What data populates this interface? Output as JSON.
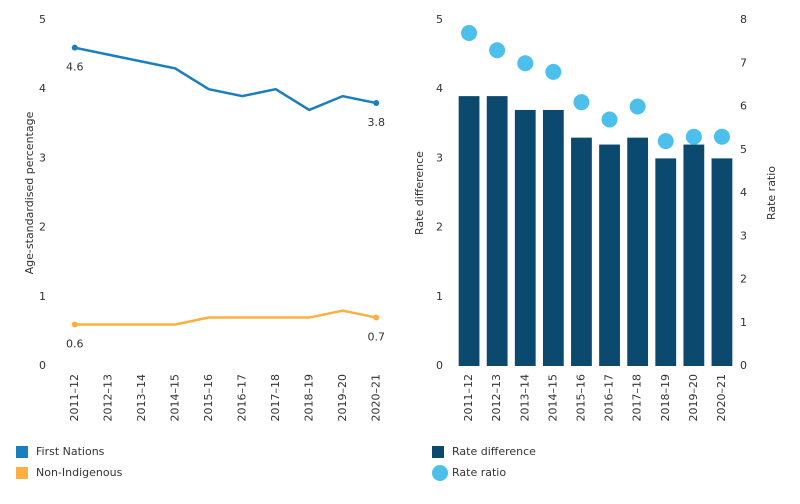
{
  "chart_data": [
    {
      "type": "line",
      "ylabel": "Age-standardised percentage",
      "categories": [
        "2011–12",
        "2012–13",
        "2013–14",
        "2014–15",
        "2015–16",
        "2016–17",
        "2017–18",
        "2018–19",
        "2019–20",
        "2020–21"
      ],
      "series": [
        {
          "name": "First Nations",
          "color": "#1b7fbd",
          "values": [
            4.6,
            4.5,
            4.4,
            4.3,
            4.0,
            3.9,
            4.0,
            3.7,
            3.9,
            3.8
          ]
        },
        {
          "name": "Non-Indigenous",
          "color": "#fbb040",
          "values": [
            0.6,
            0.6,
            0.6,
            0.6,
            0.7,
            0.7,
            0.7,
            0.7,
            0.8,
            0.7
          ]
        }
      ],
      "data_labels": "ends",
      "ylim": [
        0,
        5
      ],
      "yticks": [
        0,
        1,
        2,
        3,
        4,
        5
      ],
      "grid": false,
      "legend": "bottom-left"
    },
    {
      "type": "combo",
      "ylabel": "Rate difference",
      "y2label": "Rate ratio",
      "categories": [
        "2011–12",
        "2012–13",
        "2013–14",
        "2014–15",
        "2015–16",
        "2016–17",
        "2017–18",
        "2018–19",
        "2019–20",
        "2020–21"
      ],
      "series": [
        {
          "name": "Rate difference",
          "type": "bar",
          "color": "#0b4a6e",
          "values": [
            3.9,
            3.9,
            3.7,
            3.7,
            3.3,
            3.2,
            3.3,
            3.0,
            3.2,
            3.0
          ]
        },
        {
          "name": "Rate ratio",
          "type": "scatter",
          "axis": "y2",
          "color": "#4cbfeb",
          "values": [
            7.7,
            7.3,
            7.0,
            6.8,
            6.1,
            5.7,
            6.0,
            5.2,
            5.3,
            5.3
          ]
        }
      ],
      "ylim": [
        0,
        5
      ],
      "yticks": [
        0,
        1,
        2,
        3,
        4,
        5
      ],
      "y2lim": [
        0,
        8
      ],
      "y2ticks": [
        0,
        1,
        2,
        3,
        4,
        5,
        6,
        7,
        8
      ],
      "grid": false,
      "legend": "bottom-left"
    }
  ]
}
